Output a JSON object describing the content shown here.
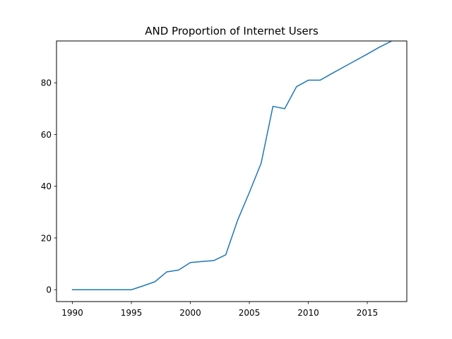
{
  "chart_data": {
    "type": "line",
    "title": "AND Proportion of Internet Users",
    "xlabel": "",
    "ylabel": "",
    "xlim": [
      1988.65,
      2018.35
    ],
    "ylim": [
      -4.58,
      96.17
    ],
    "x_ticks": [
      1990,
      1995,
      2000,
      2005,
      2010,
      2015
    ],
    "y_ticks": [
      0,
      20,
      40,
      60,
      80
    ],
    "grid": false,
    "legend": "none",
    "series": [
      {
        "color": "#1f77b4",
        "x": [
          1990,
          1991,
          1992,
          1993,
          1994,
          1995,
          1996,
          1997,
          1998,
          1999,
          2000,
          2001,
          2002,
          2003,
          2004,
          2005,
          2006,
          2007,
          2008,
          2009,
          2010,
          2011,
          2012,
          2013,
          2014,
          2015,
          2016,
          2017
        ],
        "y": [
          0,
          0,
          0,
          0,
          0,
          0,
          1.5,
          3.1,
          6.9,
          7.6,
          10.5,
          10.9,
          11.3,
          13.5,
          26.8,
          37.6,
          48.9,
          70.9,
          70.0,
          78.5,
          81.0,
          81.0,
          83.6,
          86.1,
          88.6,
          91.1,
          93.7,
          96.0
        ]
      }
    ]
  }
}
